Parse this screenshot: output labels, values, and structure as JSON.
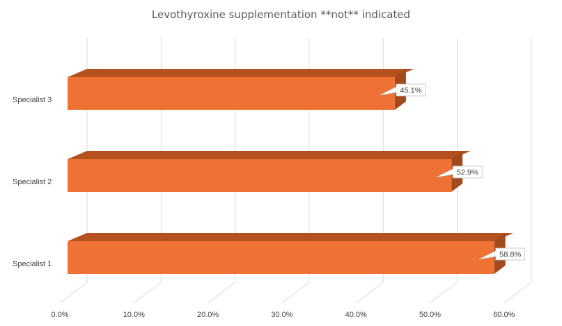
{
  "chart_data": {
    "type": "bar",
    "orientation": "horizontal",
    "style": "3d",
    "title": "Levothyroxine supplementation **not** indicated",
    "categories": [
      "Specialist 1",
      "Specialist 2",
      "Specialist 3"
    ],
    "values": [
      58.8,
      52.9,
      45.1
    ],
    "data_labels": [
      "58.8%",
      "52.9%",
      "45.1%"
    ],
    "x_ticks": [
      "0.0%",
      "10.0%",
      "20.0%",
      "30.0%",
      "40.0%",
      "50.0%",
      "60.0%"
    ],
    "xlim": [
      0,
      60
    ],
    "grid": true,
    "legend": "none",
    "colors": {
      "bar_front": "#ED7234",
      "bar_top": "#B5511F",
      "bar_side": "#A24A1D",
      "grid": "#D9D9D9"
    }
  }
}
